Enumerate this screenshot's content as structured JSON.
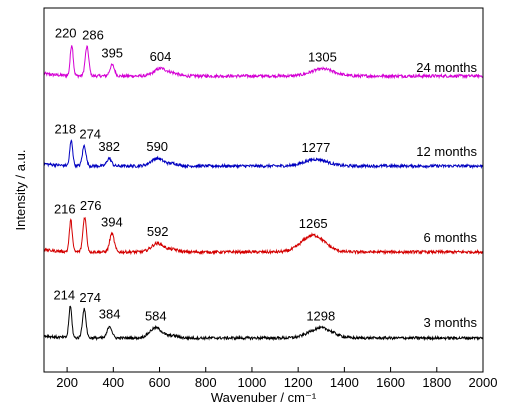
{
  "chart_data": {
    "type": "line",
    "title": "",
    "xlabel": "Wavenuber / cm⁻¹",
    "ylabel": "Intensity / a.u.",
    "xlim": [
      100,
      2000
    ],
    "x_ticks": [
      "200",
      "400",
      "600",
      "800",
      "1000",
      "1200",
      "1400",
      "1600",
      "1800",
      "2000"
    ],
    "y_ticks": "none",
    "grid": false,
    "legend": "none",
    "series": [
      {
        "name": "24 months",
        "color": "#d400d4",
        "peaks": [
          {
            "x": 220,
            "label": "220",
            "h": 0.62
          },
          {
            "x": 286,
            "label": "286",
            "h": 0.58
          },
          {
            "x": 395,
            "label": "395",
            "h": 0.22
          },
          {
            "x": 604,
            "label": "604",
            "h": 0.15
          },
          {
            "x": 1305,
            "label": "1305",
            "h": 0.14
          }
        ]
      },
      {
        "name": "12 months",
        "color": "#0000c0",
        "peaks": [
          {
            "x": 218,
            "label": "218",
            "h": 0.52
          },
          {
            "x": 274,
            "label": "274",
            "h": 0.42
          },
          {
            "x": 382,
            "label": "382",
            "h": 0.16
          },
          {
            "x": 590,
            "label": "590",
            "h": 0.16
          },
          {
            "x": 1277,
            "label": "1277",
            "h": 0.14
          }
        ]
      },
      {
        "name": "6 months",
        "color": "#d40000",
        "peaks": [
          {
            "x": 216,
            "label": "216",
            "h": 0.65
          },
          {
            "x": 276,
            "label": "276",
            "h": 0.72
          },
          {
            "x": 394,
            "label": "394",
            "h": 0.38
          },
          {
            "x": 592,
            "label": "592",
            "h": 0.18
          },
          {
            "x": 1265,
            "label": "1265",
            "h": 0.35
          }
        ]
      },
      {
        "name": "3 months",
        "color": "#000000",
        "peaks": [
          {
            "x": 214,
            "label": "214",
            "h": 0.68
          },
          {
            "x": 274,
            "label": "274",
            "h": 0.62
          },
          {
            "x": 384,
            "label": "384",
            "h": 0.26
          },
          {
            "x": 584,
            "label": "584",
            "h": 0.22
          },
          {
            "x": 1298,
            "label": "1298",
            "h": 0.22
          }
        ]
      }
    ]
  }
}
